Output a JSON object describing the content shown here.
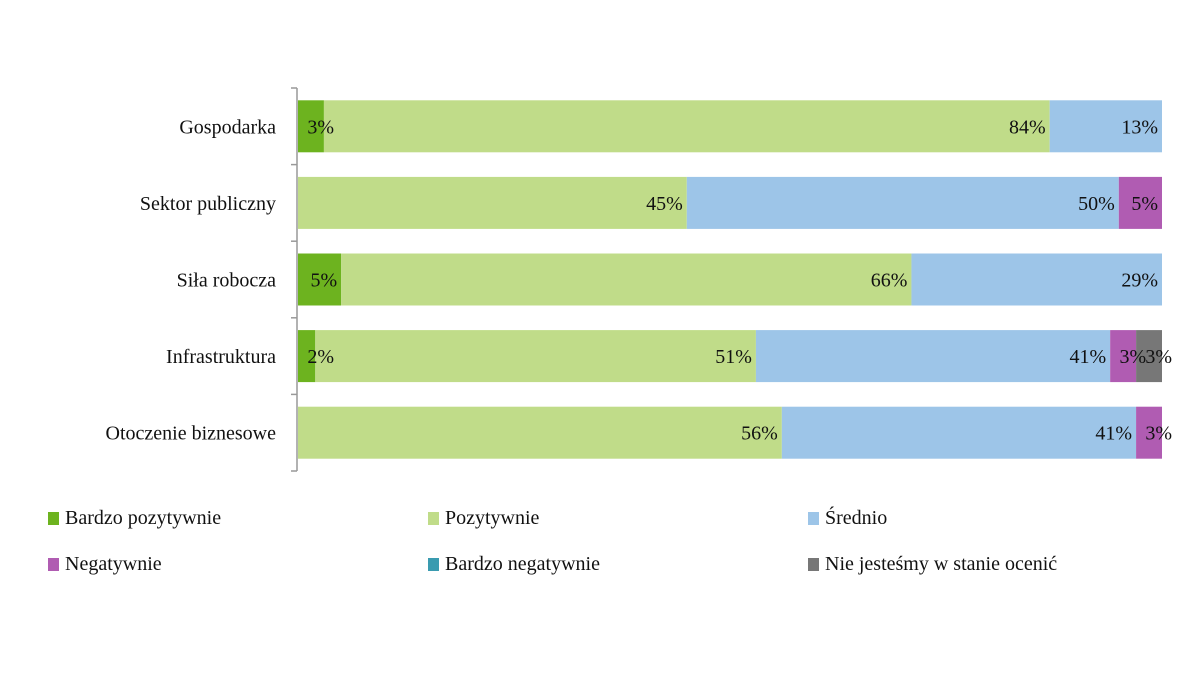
{
  "chart_data": {
    "type": "bar",
    "orientation": "horizontal",
    "stacked": "100%",
    "categories": [
      "Gospodarka",
      "Sektor publiczny",
      "Siła robocza",
      "Infrastruktura",
      "Otoczenie biznesowe"
    ],
    "series": [
      {
        "name": "Bardzo pozytywnie",
        "color": "#6db31f",
        "values": [
          3,
          0,
          5,
          2,
          0
        ]
      },
      {
        "name": "Pozytywnie",
        "color": "#c0dc89",
        "values": [
          84,
          45,
          66,
          51,
          56
        ]
      },
      {
        "name": "Średnio",
        "color": "#9dc5e8",
        "values": [
          13,
          50,
          29,
          41,
          41
        ]
      },
      {
        "name": "Negatywnie",
        "color": "#b05cb2",
        "values": [
          0,
          5,
          0,
          3,
          3
        ]
      },
      {
        "name": "Bardzo negatywnie",
        "color": "#3a9bb0",
        "values": [
          0,
          0,
          0,
          0,
          0
        ]
      },
      {
        "name": "Nie jesteśmy w stanie ocenić",
        "color": "#777777",
        "values": [
          0,
          0,
          0,
          3,
          0
        ]
      }
    ],
    "value_suffix": "%",
    "xlim": [
      0,
      100
    ],
    "legend_position": "bottom",
    "grid": false
  }
}
